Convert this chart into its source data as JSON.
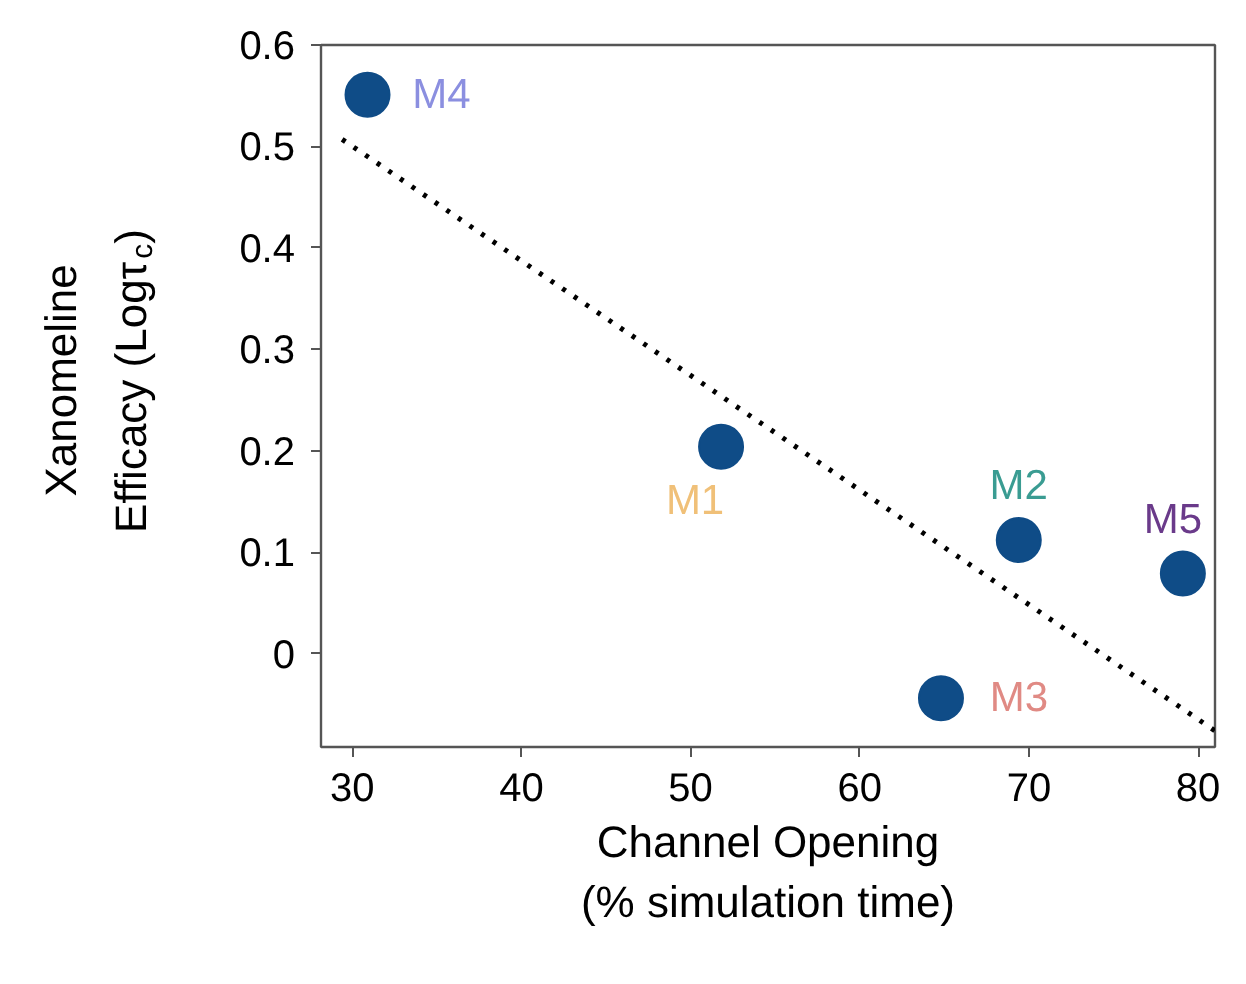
{
  "chart_data": {
    "type": "scatter",
    "xlabel": "Channel Opening\n(% simulation time)",
    "ylabel": "Xanomeline\nEfficacy (Logτ$_{c}$)",
    "xlim": [
      28.15,
      81.0
    ],
    "ylim": [
      -0.092,
      0.6
    ],
    "xticks": [
      30,
      40,
      50,
      60,
      70,
      80
    ],
    "yticks": [
      0,
      0.1,
      0.2,
      0.3,
      0.4,
      0.5,
      0.6
    ],
    "grid": false,
    "legend": false,
    "series": [
      {
        "color": "#0f4c87",
        "marker": "circle",
        "x": [
          30.9,
          51.8,
          69.4,
          79.1,
          64.8
        ],
        "values": [
          0.551,
          0.204,
          0.112,
          0.079,
          -0.044
        ]
      },
      {
        "type": "line",
        "color": "#000000",
        "line_style": "dotted",
        "marker": "none",
        "x": [
          29.4,
          81.0
        ],
        "values": [
          0.507,
          -0.076
        ]
      }
    ],
    "annotations": [
      {
        "text": "M4",
        "x": 30.9,
        "y": 0.551
      },
      {
        "text": "M1",
        "x": 51.8,
        "y": 0.204
      },
      {
        "text": "M2",
        "x": 69.4,
        "y": 0.112
      },
      {
        "text": "M5",
        "x": 79.1,
        "y": 0.079
      },
      {
        "text": "M3",
        "x": 64.8,
        "y": -0.044
      }
    ]
  }
}
